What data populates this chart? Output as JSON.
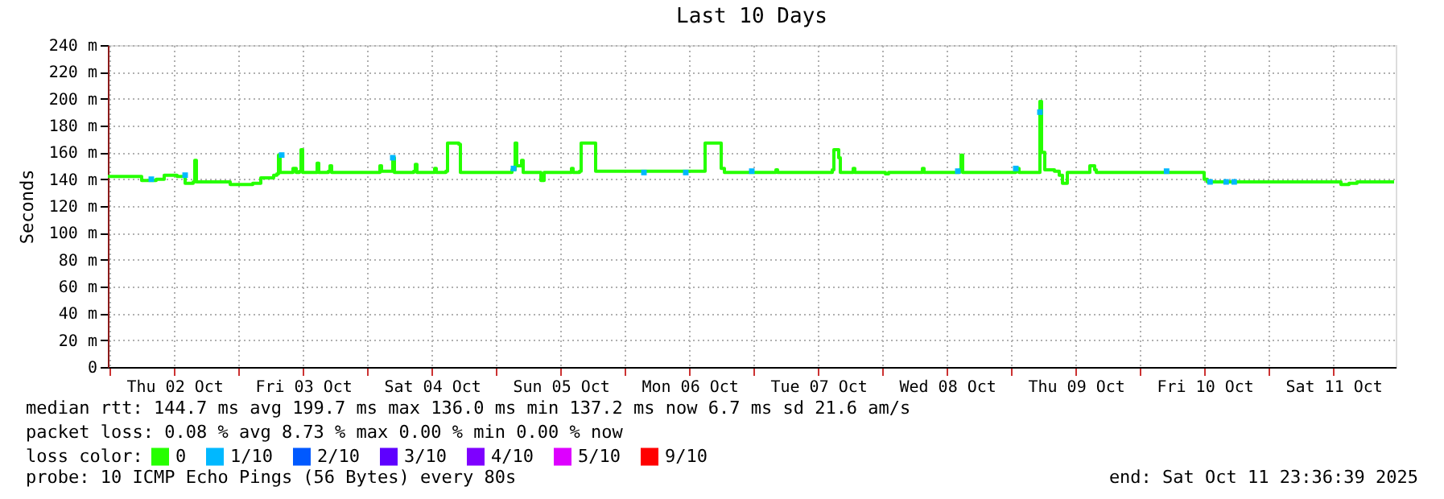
{
  "chart_data": {
    "type": "step",
    "title": "Last 10 Days",
    "ylabel": "Seconds",
    "legend_title": "loss color:",
    "legend": "bottom",
    "grid": true,
    "xlim": [
      "2025-10-01T23:36",
      "2025-10-11T23:36"
    ],
    "xticks": [
      {
        "value": "2025-10-02T00:00",
        "label": null
      },
      {
        "value": "2025-10-02T12:00",
        "label": "Thu 02 Oct"
      },
      {
        "value": "2025-10-03T00:00",
        "label": null
      },
      {
        "value": "2025-10-03T12:00",
        "label": "Fri 03 Oct"
      },
      {
        "value": "2025-10-04T00:00",
        "label": null
      },
      {
        "value": "2025-10-04T12:00",
        "label": "Sat 04 Oct"
      },
      {
        "value": "2025-10-05T00:00",
        "label": null
      },
      {
        "value": "2025-10-05T12:00",
        "label": "Sun 05 Oct"
      },
      {
        "value": "2025-10-06T00:00",
        "label": null
      },
      {
        "value": "2025-10-06T12:00",
        "label": "Mon 06 Oct"
      },
      {
        "value": "2025-10-07T00:00",
        "label": null
      },
      {
        "value": "2025-10-07T12:00",
        "label": "Tue 07 Oct"
      },
      {
        "value": "2025-10-08T00:00",
        "label": null
      },
      {
        "value": "2025-10-08T12:00",
        "label": "Wed 08 Oct"
      },
      {
        "value": "2025-10-09T00:00",
        "label": null
      },
      {
        "value": "2025-10-09T12:00",
        "label": "Thu 09 Oct"
      },
      {
        "value": "2025-10-10T00:00",
        "label": null
      },
      {
        "value": "2025-10-10T12:00",
        "label": "Fri 10 Oct"
      },
      {
        "value": "2025-10-11T00:00",
        "label": null
      },
      {
        "value": "2025-10-11T12:00",
        "label": "Sat 11 Oct"
      }
    ],
    "ylim": [
      0,
      240
    ],
    "yticks": [
      {
        "value": 0,
        "label": "0"
      },
      {
        "value": 20,
        "label": "20 m"
      },
      {
        "value": 40,
        "label": "40 m"
      },
      {
        "value": 60,
        "label": "60 m"
      },
      {
        "value": 80,
        "label": "80 m"
      },
      {
        "value": 100,
        "label": "100 m"
      },
      {
        "value": 120,
        "label": "120 m"
      },
      {
        "value": 140,
        "label": "140 m"
      },
      {
        "value": 160,
        "label": "160 m"
      },
      {
        "value": 180,
        "label": "180 m"
      },
      {
        "value": 200,
        "label": "200 m"
      },
      {
        "value": 220,
        "label": "220 m"
      },
      {
        "value": 240,
        "label": "240 m"
      }
    ],
    "series": [
      {
        "name": "0",
        "color": "#26ff00",
        "x": [
          "2025-10-01T23:36",
          "2025-10-02T04:24",
          "2025-10-02T05:54",
          "2025-10-02T08:36",
          "2025-10-02T10:06",
          "2025-10-02T12:30",
          "2025-10-02T14:00",
          "2025-10-02T15:30",
          "2025-10-02T15:48",
          "2025-10-02T16:06",
          "2025-10-02T17:36",
          "2025-10-02T22:24",
          "2025-10-03T02:36",
          "2025-10-03T04:06",
          "2025-10-03T06:30",
          "2025-10-03T07:06",
          "2025-10-03T07:24",
          "2025-10-03T07:42",
          "2025-10-03T08:36",
          "2025-10-03T10:06",
          "2025-10-03T10:42",
          "2025-10-03T11:18",
          "2025-10-03T11:36",
          "2025-10-03T11:54",
          "2025-10-03T14:18",
          "2025-10-03T14:36",
          "2025-10-03T14:54",
          "2025-10-03T16:42",
          "2025-10-03T17:00",
          "2025-10-03T17:18",
          "2025-10-04T01:24",
          "2025-10-04T02:18",
          "2025-10-04T02:36",
          "2025-10-04T04:42",
          "2025-10-04T05:00",
          "2025-10-04T08:36",
          "2025-10-04T08:54",
          "2025-10-04T09:12",
          "2025-10-04T12:30",
          "2025-10-04T12:48",
          "2025-10-04T14:36",
          "2025-10-04T14:54",
          "2025-10-04T17:00",
          "2025-10-04T17:18",
          "2025-10-05T02:54",
          "2025-10-05T03:30",
          "2025-10-05T03:48",
          "2025-10-05T04:42",
          "2025-10-05T05:00",
          "2025-10-05T08:18",
          "2025-10-05T08:54",
          "2025-10-05T14:00",
          "2025-10-05T14:18",
          "2025-10-05T15:30",
          "2025-10-05T15:48",
          "2025-10-05T18:12",
          "2025-10-05T18:30",
          "2025-10-06T14:36",
          "2025-10-06T14:54",
          "2025-10-06T17:36",
          "2025-10-06T17:54",
          "2025-10-06T18:30",
          "2025-10-07T04:06",
          "2025-10-07T04:24",
          "2025-10-07T14:36",
          "2025-10-07T14:54",
          "2025-10-07T15:48",
          "2025-10-07T16:06",
          "2025-10-07T18:30",
          "2025-10-07T18:48",
          "2025-10-08T00:30",
          "2025-10-08T01:06",
          "2025-10-08T07:24",
          "2025-10-08T07:42",
          "2025-10-08T14:18",
          "2025-10-08T14:36",
          "2025-10-08T14:54",
          "2025-10-09T00:48",
          "2025-10-09T01:24",
          "2025-10-09T05:00",
          "2025-10-09T05:18",
          "2025-10-09T05:36",
          "2025-10-09T06:12",
          "2025-10-09T08:00",
          "2025-10-09T08:54",
          "2025-10-09T09:30",
          "2025-10-09T10:24",
          "2025-10-09T14:18",
          "2025-10-09T14:36",
          "2025-10-09T15:30",
          "2025-10-09T15:48",
          "2025-10-10T11:18",
          "2025-10-10T11:54",
          "2025-10-10T12:30",
          "2025-10-11T13:06",
          "2025-10-11T13:24",
          "2025-10-11T14:54",
          "2025-10-11T16:24",
          "2025-10-11T23:18"
        ],
        "values": [
          142,
          142,
          139,
          140,
          143,
          142,
          137,
          138,
          154,
          138,
          138,
          136,
          137,
          141,
          143,
          144,
          158,
          145,
          145,
          148,
          145,
          146,
          162,
          145,
          145,
          152,
          145,
          146,
          150,
          145,
          145,
          150,
          146,
          156,
          145,
          146,
          151,
          145,
          148,
          145,
          146,
          167,
          166,
          145,
          147,
          167,
          150,
          154,
          145,
          139,
          145,
          148,
          145,
          146,
          167,
          167,
          146,
          146,
          167,
          167,
          148,
          145,
          147,
          145,
          147,
          162,
          156,
          145,
          148,
          145,
          144,
          145,
          148,
          145,
          147,
          158,
          145,
          148,
          145,
          145,
          198,
          160,
          147,
          146,
          143,
          137,
          145,
          145,
          150,
          147,
          145,
          145,
          140,
          138,
          138,
          136,
          137,
          138,
          138
        ]
      },
      {
        "name": "1/10",
        "color": "#00b8ff",
        "type": "scatter",
        "marker": "square",
        "x": [
          "2025-10-02T07:42",
          "2025-10-02T14:00",
          "2025-10-03T08:00",
          "2025-10-04T04:42",
          "2025-10-05T03:12",
          "2025-10-06T03:30",
          "2025-10-06T11:18",
          "2025-10-06T23:36",
          "2025-10-08T14:00",
          "2025-10-09T00:48",
          "2025-10-09T05:18",
          "2025-10-10T04:54",
          "2025-10-10T13:00",
          "2025-10-10T16:00",
          "2025-10-10T17:30"
        ],
        "values": [
          140,
          143,
          158,
          156,
          148,
          145,
          145,
          146,
          146,
          148,
          190,
          146,
          138,
          138,
          138
        ]
      },
      {
        "name": "2/10",
        "color": "#0059ff",
        "type": "scatter",
        "marker": "square"
      },
      {
        "name": "3/10",
        "color": "#5e00ff",
        "type": "scatter",
        "marker": "square"
      },
      {
        "name": "4/10",
        "color": "#7e00ff",
        "type": "scatter",
        "marker": "square"
      },
      {
        "name": "5/10",
        "color": "#dd00ff",
        "type": "scatter",
        "marker": "square"
      },
      {
        "name": "9/10",
        "color": "#ff0000",
        "type": "scatter",
        "marker": "square"
      }
    ],
    "annotations": [
      "median rtt:  144.7 ms avg  199.7 ms max  136.0 ms min  137.2 ms now  6.7 ms sd  21.6   am/s",
      "packet loss: 0.08 % avg  8.73 % max  0.00 % min  0.00 % now",
      "probe:       10 ICMP Echo Pings (56 Bytes) every 80s",
      "end: Sat Oct 11 23:36:39 2025"
    ]
  }
}
